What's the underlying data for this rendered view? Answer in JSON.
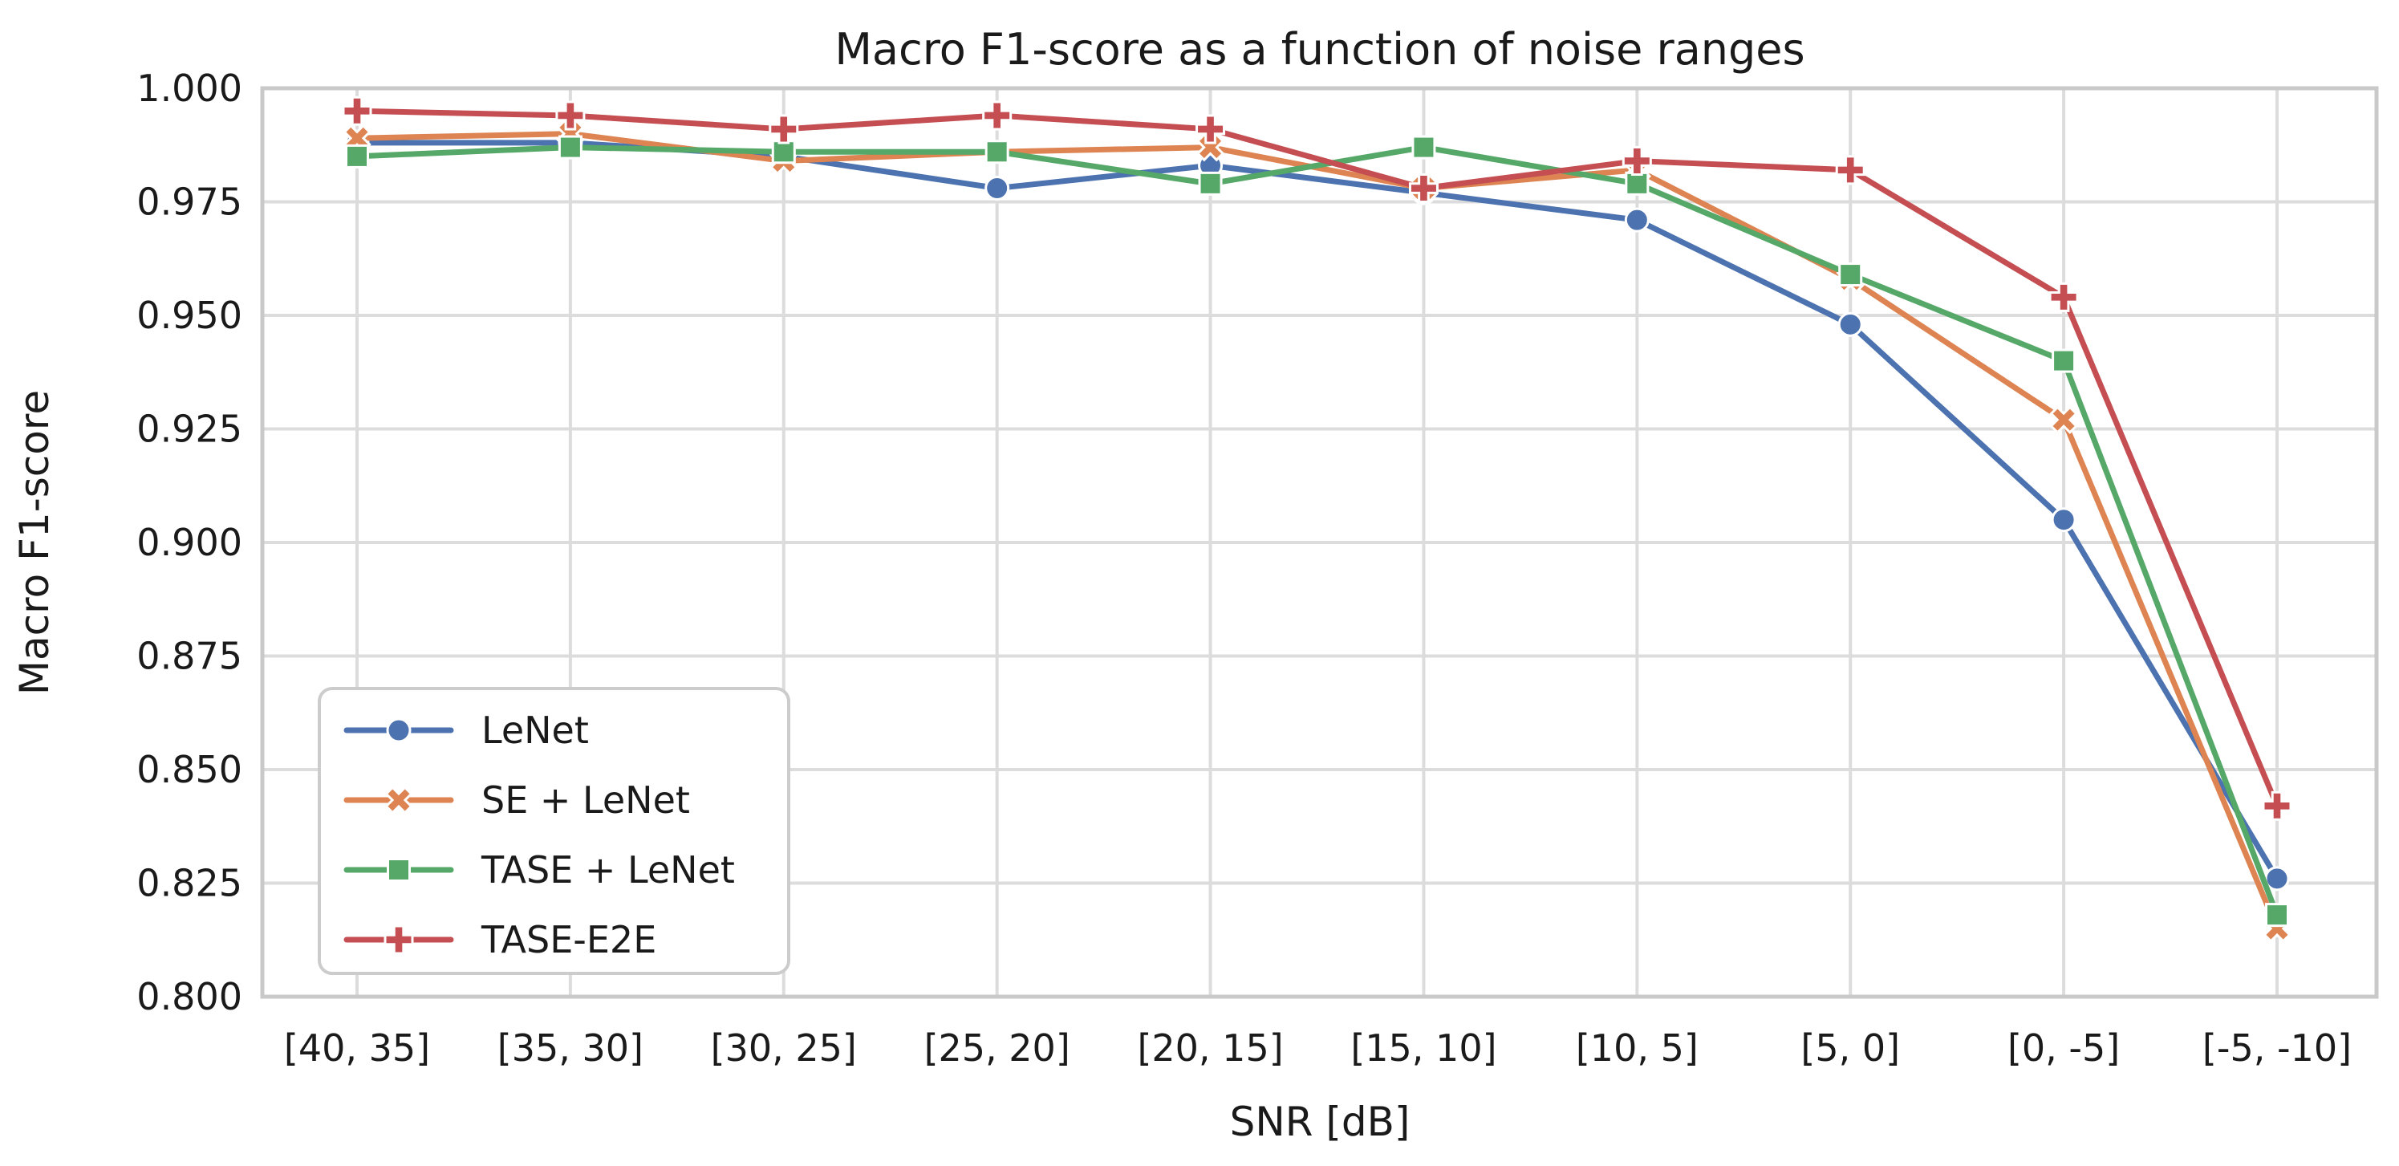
{
  "chart_data": {
    "type": "line",
    "title": "Macro F1-score as a function of noise ranges",
    "xlabel": "SNR [dB]",
    "ylabel": "Macro F1-score",
    "categories": [
      "[40, 35]",
      "[35, 30]",
      "[30, 25]",
      "[25, 20]",
      "[20, 15]",
      "[15, 10]",
      "[10, 5]",
      "[5, 0]",
      "[0, -5]",
      "[-5, -10]"
    ],
    "series": [
      {
        "name": "LeNet",
        "color": "#4C72B0",
        "marker": "circle",
        "values": [
          0.988,
          0.988,
          0.985,
          0.978,
          0.983,
          0.977,
          0.971,
          0.948,
          0.905,
          0.826
        ]
      },
      {
        "name": "SE + LeNet",
        "color": "#DD8452",
        "marker": "x",
        "values": [
          0.989,
          0.99,
          0.984,
          0.986,
          0.987,
          0.978,
          0.982,
          0.958,
          0.927,
          0.815
        ]
      },
      {
        "name": "TASE + LeNet",
        "color": "#55A868",
        "marker": "square",
        "values": [
          0.985,
          0.987,
          0.986,
          0.986,
          0.979,
          0.987,
          0.979,
          0.959,
          0.94,
          0.818
        ]
      },
      {
        "name": "TASE-E2E",
        "color": "#C44E52",
        "marker": "plus",
        "values": [
          0.995,
          0.994,
          0.991,
          0.994,
          0.991,
          0.978,
          0.984,
          0.982,
          0.954,
          0.842
        ]
      }
    ],
    "ylim": [
      0.8,
      1.0
    ],
    "yticks": [
      0.8,
      0.825,
      0.85,
      0.875,
      0.9,
      0.925,
      0.95,
      0.975,
      1.0
    ],
    "ytick_labels": [
      "0.800",
      "0.825",
      "0.850",
      "0.875",
      "0.900",
      "0.925",
      "0.950",
      "0.975",
      "1.000"
    ],
    "grid": true,
    "legend_position": "lower left",
    "background_color": "#ffffff",
    "grid_color": "#dcdcdc",
    "spine_color": "#c9c9c9",
    "text_color": "#1a1a1a"
  }
}
